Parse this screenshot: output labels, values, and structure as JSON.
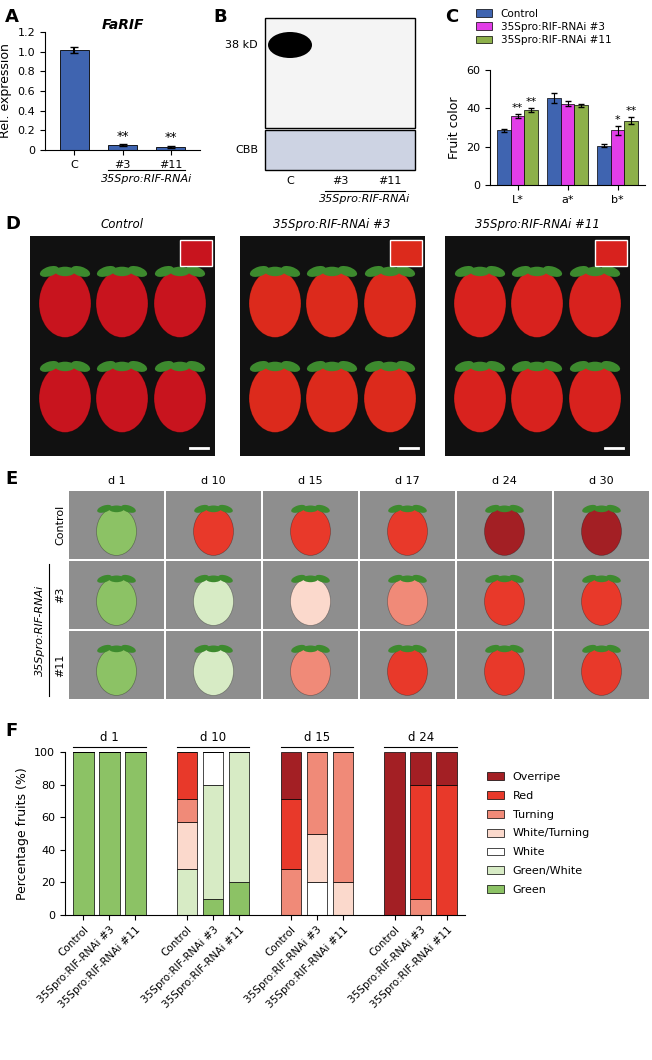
{
  "panel_labels": [
    "A",
    "B",
    "C",
    "D",
    "E",
    "F"
  ],
  "chart_data": [
    {
      "type": "bar",
      "title": "FaRIF",
      "y_label": "Rel. expression",
      "categories": [
        "C",
        "#3",
        "#11"
      ],
      "values": [
        1.02,
        0.05,
        0.03
      ],
      "errors": [
        0.03,
        0.006,
        0.006
      ],
      "significance": [
        null,
        "**",
        "**"
      ],
      "color": "#3f64b0",
      "ylim": [
        0,
        1.2
      ],
      "yticks": [
        0,
        0.2,
        0.4,
        0.6,
        0.8,
        1.0,
        1.2
      ],
      "group": {
        "label": "35Spro:RIF-RNAi",
        "members": [
          "#3",
          "#11"
        ]
      }
    },
    {
      "type": "bar",
      "y_label": "Fruit color",
      "categories": [
        "L*",
        "a*",
        "b*"
      ],
      "series": [
        {
          "name": "Control",
          "color": "#3f64b0",
          "values": [
            28.5,
            45.3,
            20.5
          ],
          "errors": [
            0.8,
            2.5,
            0.8
          ],
          "significance": [
            null,
            null,
            null
          ]
        },
        {
          "name": "35Spro:RIF-RNAi #3",
          "color": "#e23ee8",
          "values": [
            36,
            42.5,
            28.5
          ],
          "errors": [
            1.3,
            1.3,
            2.5
          ],
          "significance": [
            "**",
            null,
            "*"
          ]
        },
        {
          "name": "35Spro:RIF-RNAi #11",
          "color": "#8db04a",
          "values": [
            39.2,
            41.5,
            33.5
          ],
          "errors": [
            1.0,
            0.8,
            1.8
          ],
          "significance": [
            "**",
            null,
            "**"
          ]
        }
      ],
      "ylim": [
        0,
        60
      ],
      "yticks": [
        0,
        20,
        40,
        60
      ],
      "legend": "upper left"
    },
    {
      "type": "bar",
      "stacked": true,
      "y_label": "Percentage fruits (%)",
      "groups": [
        "d 1",
        "d 10",
        "d 15",
        "d 24"
      ],
      "categories": [
        "Control",
        "35Spro:RIF-RNAi #3",
        "35Spro:RIF-RNAi #11"
      ],
      "series": [
        {
          "name": "Green",
          "color": "#8cc265",
          "values": [
            [
              100,
              100,
              100
            ],
            [
              0,
              10,
              20
            ],
            [
              0,
              0,
              0
            ],
            [
              0,
              0,
              0
            ]
          ]
        },
        {
          "name": "Green/White",
          "color": "#d7ebc5",
          "values": [
            [
              0,
              0,
              0
            ],
            [
              28,
              70,
              80
            ],
            [
              0,
              0,
              0
            ],
            [
              0,
              0,
              0
            ]
          ]
        },
        {
          "name": "White",
          "color": "#ffffff",
          "values": [
            [
              0,
              0,
              0
            ],
            [
              0,
              20,
              0
            ],
            [
              0,
              20,
              0
            ],
            [
              0,
              0,
              0
            ]
          ]
        },
        {
          "name": "White/Turning",
          "color": "#fbd9cc",
          "values": [
            [
              0,
              0,
              0
            ],
            [
              29,
              0,
              0
            ],
            [
              0,
              30,
              20
            ],
            [
              0,
              0,
              0
            ]
          ]
        },
        {
          "name": "Turning",
          "color": "#f08a78",
          "values": [
            [
              0,
              0,
              0
            ],
            [
              14,
              0,
              0
            ],
            [
              28,
              50,
              80
            ],
            [
              0,
              10,
              0
            ]
          ]
        },
        {
          "name": "Red",
          "color": "#e8392a",
          "values": [
            [
              0,
              0,
              0
            ],
            [
              29,
              0,
              0
            ],
            [
              43,
              0,
              0
            ],
            [
              0,
              70,
              80
            ]
          ]
        },
        {
          "name": "Overripe",
          "color": "#a31f24",
          "values": [
            [
              0,
              0,
              0
            ],
            [
              0,
              0,
              0
            ],
            [
              29,
              0,
              0
            ],
            [
              100,
              20,
              20
            ]
          ]
        }
      ],
      "ylim": [
        0,
        100
      ],
      "yticks": [
        0,
        20,
        40,
        60,
        80,
        100
      ],
      "legend": "center left"
    }
  ],
  "blot_B": {
    "marker_label": "38 kD",
    "stain_label": "CBB",
    "lanes": [
      "C",
      "#3",
      "#11"
    ],
    "band_present": [
      true,
      false,
      false
    ],
    "group": {
      "label": "35Spro:RIF-RNAi",
      "members": [
        "#3",
        "#11"
      ]
    }
  },
  "photos_D": {
    "titles": [
      "Control",
      "35Spro:RIF-RNAi #3",
      "35Spro:RIF-RNAi #11"
    ]
  },
  "photos_E": {
    "days": [
      "d 1",
      "d 10",
      "d 15",
      "d 17",
      "d 24",
      "d 30"
    ],
    "rows": [
      {
        "label": "Control",
        "stages": [
          "Green",
          "Red",
          "Red",
          "Red",
          "Overripe",
          "Overripe"
        ]
      },
      {
        "label": "#3",
        "stages": [
          "Green",
          "Green/White",
          "White/Turning",
          "Turning",
          "Red",
          "Red"
        ]
      },
      {
        "label": "#11",
        "stages": [
          "Green",
          "Green/White",
          "Turning",
          "Red",
          "Red",
          "Red"
        ]
      }
    ],
    "group": {
      "label": "35Spro:RIF-RNAi",
      "members": [
        "#3",
        "#11"
      ]
    }
  }
}
